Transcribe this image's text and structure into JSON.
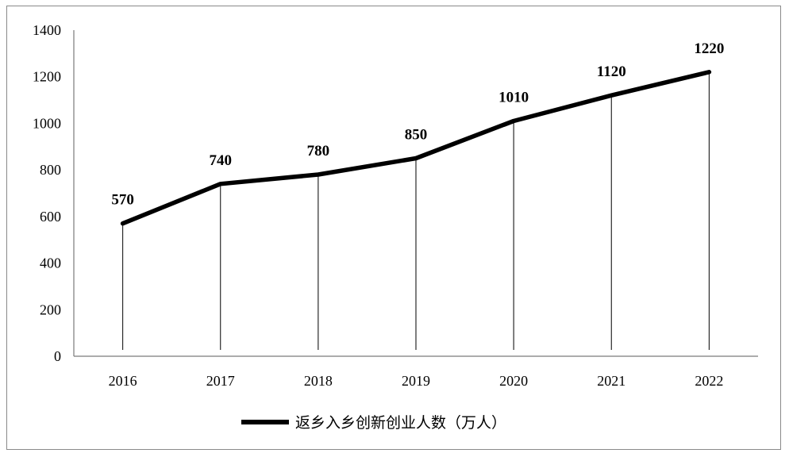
{
  "chart_data": {
    "type": "line",
    "categories": [
      "2016",
      "2017",
      "2018",
      "2019",
      "2020",
      "2021",
      "2022"
    ],
    "series": [
      {
        "name": "返乡入乡创新创业人数（万人）",
        "values": [
          570,
          740,
          780,
          850,
          1010,
          1120,
          1220
        ]
      }
    ],
    "data_labels": [
      "570",
      "740",
      "780",
      "850",
      "1010",
      "1120",
      "1220"
    ],
    "yticks": [
      "0",
      "200",
      "400",
      "600",
      "800",
      "1000",
      "1200",
      "1400"
    ],
    "ylim": [
      0,
      1400
    ],
    "grid": false,
    "drop_lines": true,
    "legend_position": "bottom",
    "line_color": "#000000"
  }
}
